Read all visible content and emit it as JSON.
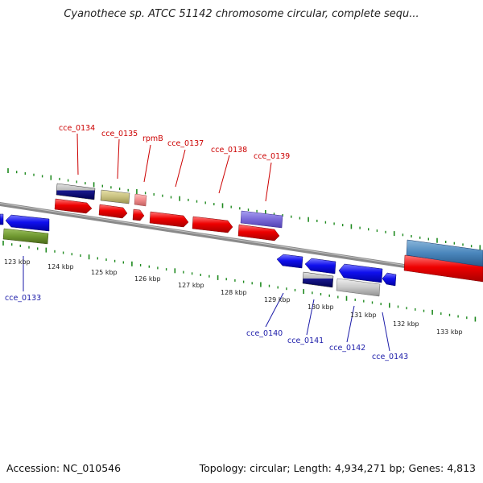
{
  "title": "Cyanothece sp. ATCC 51142 chromosome circular, complete sequ...",
  "footer": {
    "accession": "Accession: NC_010546",
    "topology": "Topology: circular; Length: 4,934,271 bp; Genes: 4,813"
  },
  "colors": {
    "upper_label": "#cc0000",
    "lower_label": "#1a1aa8",
    "tick": "#1f8a1f",
    "backbone": "#8a8a8a"
  },
  "scale_labels": [
    "123 kbp",
    "124 kbp",
    "125 kbp",
    "126 kbp",
    "127 kbp",
    "128 kbp",
    "129 kbp",
    "130 kbp",
    "131 kbp",
    "132 kbp",
    "133 kbp"
  ],
  "upper_gene_labels": [
    "cce_0134",
    "cce_0135",
    "rpmB",
    "cce_0137",
    "cce_0138",
    "cce_0139"
  ],
  "lower_gene_labels": [
    "cce_0133",
    "cce_0140",
    "cce_0141",
    "cce_0142",
    "cce_0143"
  ]
}
